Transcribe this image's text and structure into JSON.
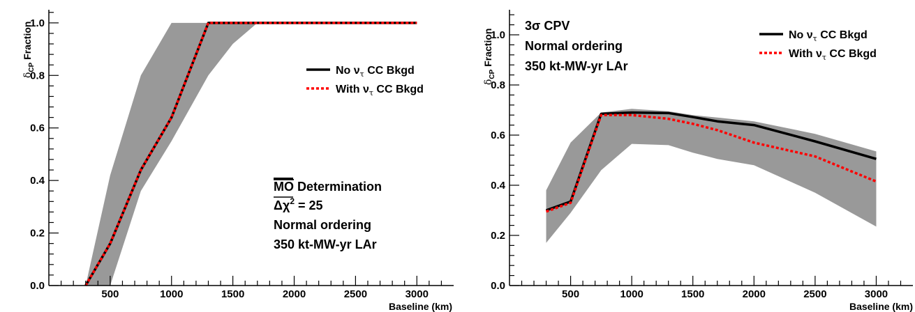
{
  "chart_data": [
    {
      "type": "line",
      "ylabel": "δCP Fraction",
      "ylabel_main": "δ",
      "ylabel_sub": "CP",
      "ylabel_rest": " Fraction",
      "xlabel": "Baseline (km)",
      "xlim": [
        0,
        3300
      ],
      "ylim": [
        0,
        1.05
      ],
      "xticks": [
        500,
        1000,
        1500,
        2000,
        2500,
        3000
      ],
      "yticks": [
        0.0,
        0.2,
        0.4,
        0.6,
        0.8,
        1.0
      ],
      "ytick_labels": [
        "0.0",
        "0.2",
        "0.4",
        "0.6",
        "0.8",
        "1.0"
      ],
      "x": [
        300,
        500,
        750,
        1000,
        1300,
        1500,
        1700,
        2000,
        2500,
        3000
      ],
      "series": [
        {
          "name": "No ντ CC Bkgd",
          "color": "#000000",
          "style": "solid",
          "values": [
            0.0,
            0.16,
            0.44,
            0.64,
            1.0,
            1.0,
            1.0,
            1.0,
            1.0,
            1.0
          ]
        },
        {
          "name": "With ντ CC Bkgd",
          "color": "#ff0000",
          "style": "dotted",
          "values": [
            0.0,
            0.16,
            0.44,
            0.64,
            1.0,
            1.0,
            1.0,
            1.0,
            1.0,
            1.0
          ]
        }
      ],
      "band": {
        "color": "#999999",
        "x": [
          300,
          500,
          750,
          1000,
          1300,
          1500,
          1700,
          2000,
          2500,
          3000
        ],
        "upper": [
          0.0,
          0.42,
          0.8,
          1.0,
          1.0,
          1.0,
          1.0,
          1.0,
          1.0,
          1.0
        ],
        "lower": [
          0.0,
          0.0,
          0.36,
          0.55,
          0.8,
          0.92,
          1.0,
          1.0,
          1.0,
          1.0
        ]
      },
      "legend": [
        {
          "main": "No ν",
          "sub": "τ",
          "rest": " CC Bkgd",
          "color": "#000000",
          "style": "solid"
        },
        {
          "main": "With ν",
          "sub": "τ",
          "rest": " CC Bkgd",
          "color": "#ff0000",
          "style": "dotted"
        }
      ],
      "legend_position": "top-right",
      "annotation": [
        "MO Determination",
        "Δχ² = 25",
        "Normal ordering",
        "350 kt-MW-yr LAr"
      ],
      "annotation_parts": {
        "mo": "MO",
        "det": " Determination",
        "dchi": "Δχ",
        "exp": "2",
        "eq": " = 25"
      },
      "grid": false
    },
    {
      "type": "line",
      "ylabel": "δCP Fraction",
      "ylabel_main": "δ",
      "ylabel_sub": "CP",
      "ylabel_rest": " Fraction",
      "xlabel": "Baseline (km)",
      "xlim": [
        0,
        3300
      ],
      "ylim": [
        0,
        1.1
      ],
      "xticks": [
        500,
        1000,
        1500,
        2000,
        2500,
        3000
      ],
      "yticks": [
        0.0,
        0.2,
        0.4,
        0.6,
        0.8,
        1.0
      ],
      "ytick_labels": [
        "0.0",
        "0.2",
        "0.4",
        "0.6",
        "0.8",
        "1.0"
      ],
      "x": [
        300,
        500,
        750,
        1000,
        1300,
        1500,
        1700,
        2000,
        2500,
        3000
      ],
      "series": [
        {
          "name": "No ντ CC Bkgd",
          "color": "#000000",
          "style": "solid",
          "values": [
            0.3,
            0.335,
            0.685,
            0.69,
            0.688,
            0.672,
            0.655,
            0.64,
            0.575,
            0.505
          ]
        },
        {
          "name": "With ντ CC Bkgd",
          "color": "#ff0000",
          "style": "dotted",
          "values": [
            0.295,
            0.33,
            0.68,
            0.68,
            0.665,
            0.645,
            0.62,
            0.57,
            0.515,
            0.415
          ]
        }
      ],
      "band": {
        "color": "#999999",
        "x": [
          300,
          500,
          750,
          1000,
          1300,
          1500,
          1700,
          2000,
          2500,
          3000
        ],
        "upper": [
          0.38,
          0.57,
          0.69,
          0.705,
          0.695,
          0.68,
          0.67,
          0.655,
          0.605,
          0.535
        ],
        "lower": [
          0.17,
          0.29,
          0.46,
          0.565,
          0.56,
          0.53,
          0.505,
          0.48,
          0.37,
          0.235
        ]
      },
      "legend": [
        {
          "main": "No ν",
          "sub": "τ",
          "rest": " CC Bkgd",
          "color": "#000000",
          "style": "solid"
        },
        {
          "main": "With ν",
          "sub": "τ",
          "rest": " CC Bkgd",
          "color": "#ff0000",
          "style": "dotted"
        }
      ],
      "legend_position": "top-right",
      "annotation": [
        "3σ CPV",
        "Normal ordering",
        "350 kt-MW-yr LAr"
      ],
      "grid": false
    }
  ]
}
